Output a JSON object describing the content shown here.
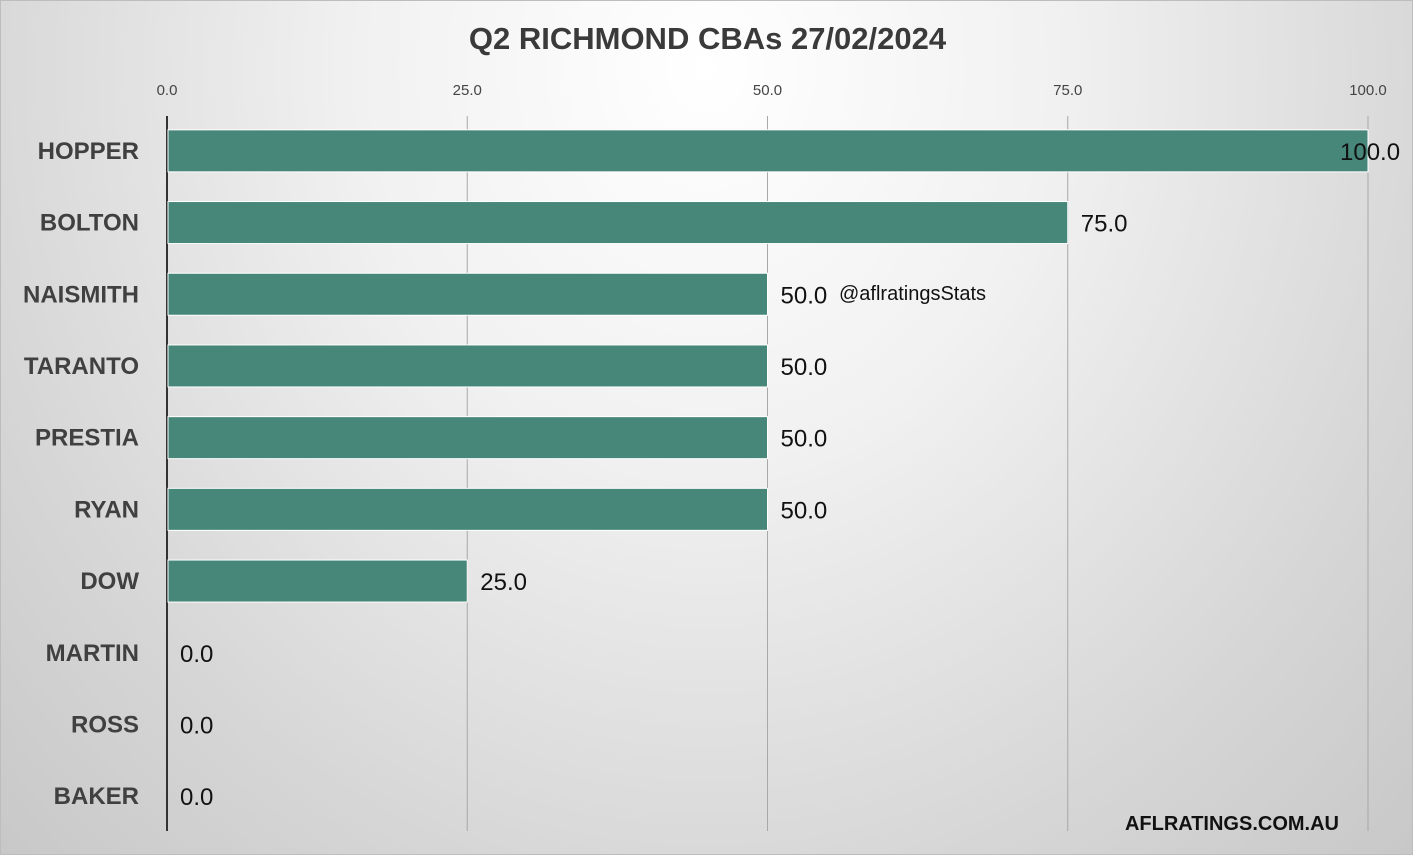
{
  "chart_data": {
    "type": "bar",
    "orientation": "horizontal",
    "title": "Q2 RICHMOND CBAs 27/02/2024",
    "categories": [
      "HOPPER",
      "BOLTON",
      "NAISMITH",
      "TARANTO",
      "PRESTIA",
      "RYAN",
      "DOW",
      "MARTIN",
      "ROSS",
      "BAKER"
    ],
    "values": [
      100.0,
      75.0,
      50.0,
      50.0,
      50.0,
      50.0,
      25.0,
      0.0,
      0.0,
      0.0
    ],
    "xlim": [
      0,
      100
    ],
    "xticks": [
      "0.0",
      "25.0",
      "50.0",
      "75.0",
      "100.0"
    ],
    "axis_position": "top",
    "grid": true,
    "bar_color": "#46877A",
    "data_labels": true
  },
  "annotations": {
    "watermark": "@aflratingsStats",
    "footer": "AFLRATINGS.COM.AU"
  }
}
